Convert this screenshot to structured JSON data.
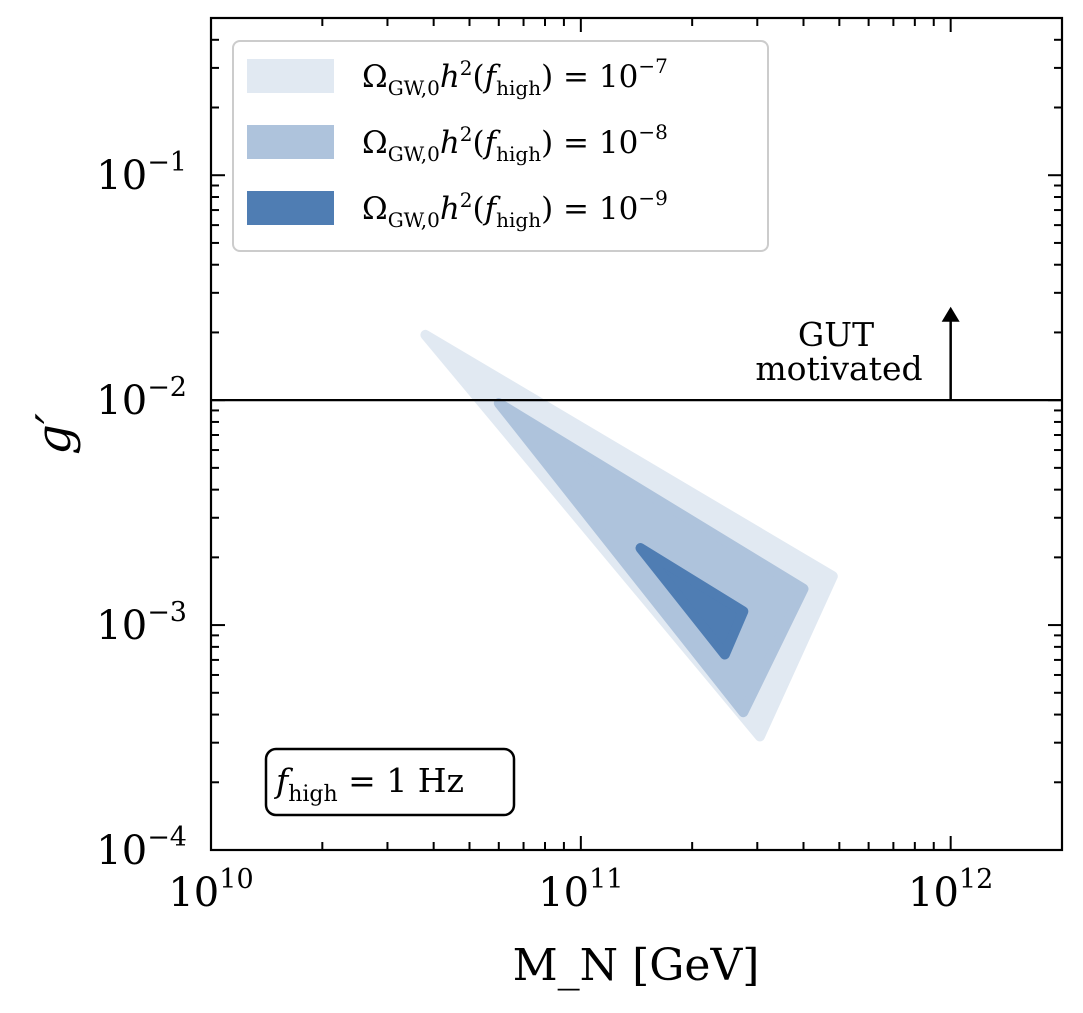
{
  "chart_data": {
    "type": "area",
    "x_scale": "log",
    "y_scale": "log",
    "xlim": [
      10000000000.0,
      2000000000000.0
    ],
    "ylim": [
      0.0001,
      0.5
    ],
    "xlabel": "M_N [GeV]",
    "ylabel": "g′",
    "x_ticks": [
      {
        "value": 10000000000.0,
        "base": "10",
        "exp": "10"
      },
      {
        "value": 100000000000.0,
        "base": "10",
        "exp": "11"
      },
      {
        "value": 1000000000000.0,
        "base": "10",
        "exp": "12"
      }
    ],
    "y_ticks": [
      {
        "value": 0.0001,
        "base": "10",
        "exp": "−4"
      },
      {
        "value": 0.001,
        "base": "10",
        "exp": "−3"
      },
      {
        "value": 0.01,
        "base": "10",
        "exp": "−2"
      },
      {
        "value": 0.1,
        "base": "10",
        "exp": "−1"
      }
    ],
    "series": [
      {
        "name": "Ω_GW,0 h²(f_high) = 10⁻⁷",
        "legend": {
          "lhs": "Ω",
          "sub": "GW,0",
          "h": "h",
          "sq": "2",
          "f": "f",
          "fsub": "high",
          "rhs": "= 10",
          "exp": "−7"
        },
        "color": "#e1e9f2",
        "polygon": [
          [
            38000000000.0,
            0.0195
          ],
          [
            480000000000.0,
            0.00165
          ],
          [
            305000000000.0,
            0.00032
          ]
        ]
      },
      {
        "name": "Ω_GW,0 h²(f_high) = 10⁻⁸",
        "legend": {
          "lhs": "Ω",
          "sub": "GW,0",
          "h": "h",
          "sq": "2",
          "f": "f",
          "fsub": "high",
          "rhs": "= 10",
          "exp": "−8"
        },
        "color": "#aec3dc",
        "polygon": [
          [
            60000000000.0,
            0.0097
          ],
          [
            400000000000.0,
            0.00145
          ],
          [
            275000000000.0,
            0.00041
          ]
        ]
      },
      {
        "name": "Ω_GW,0 h²(f_high) = 10⁻⁹",
        "legend": {
          "lhs": "Ω",
          "sub": "GW,0",
          "h": "h",
          "sq": "2",
          "f": "f",
          "fsub": "high",
          "rhs": "= 10",
          "exp": "−9"
        },
        "color": "#4f7db3",
        "polygon": [
          [
            145000000000.0,
            0.0022
          ],
          [
            275000000000.0,
            0.00115
          ],
          [
            245000000000.0,
            0.00074
          ]
        ]
      }
    ],
    "hline": {
      "y": 0.01,
      "color": "#000000"
    },
    "annotation": {
      "line1": "GUT",
      "line2": "motivated",
      "arrow_x": 1000000000000.0,
      "arrow_from_y": 0.01,
      "arrow_to_y": 0.026
    },
    "textbox": {
      "f": "f",
      "sub": "high",
      "rhs": "= 1 Hz"
    },
    "legend_position": "top-left",
    "grid": false
  }
}
